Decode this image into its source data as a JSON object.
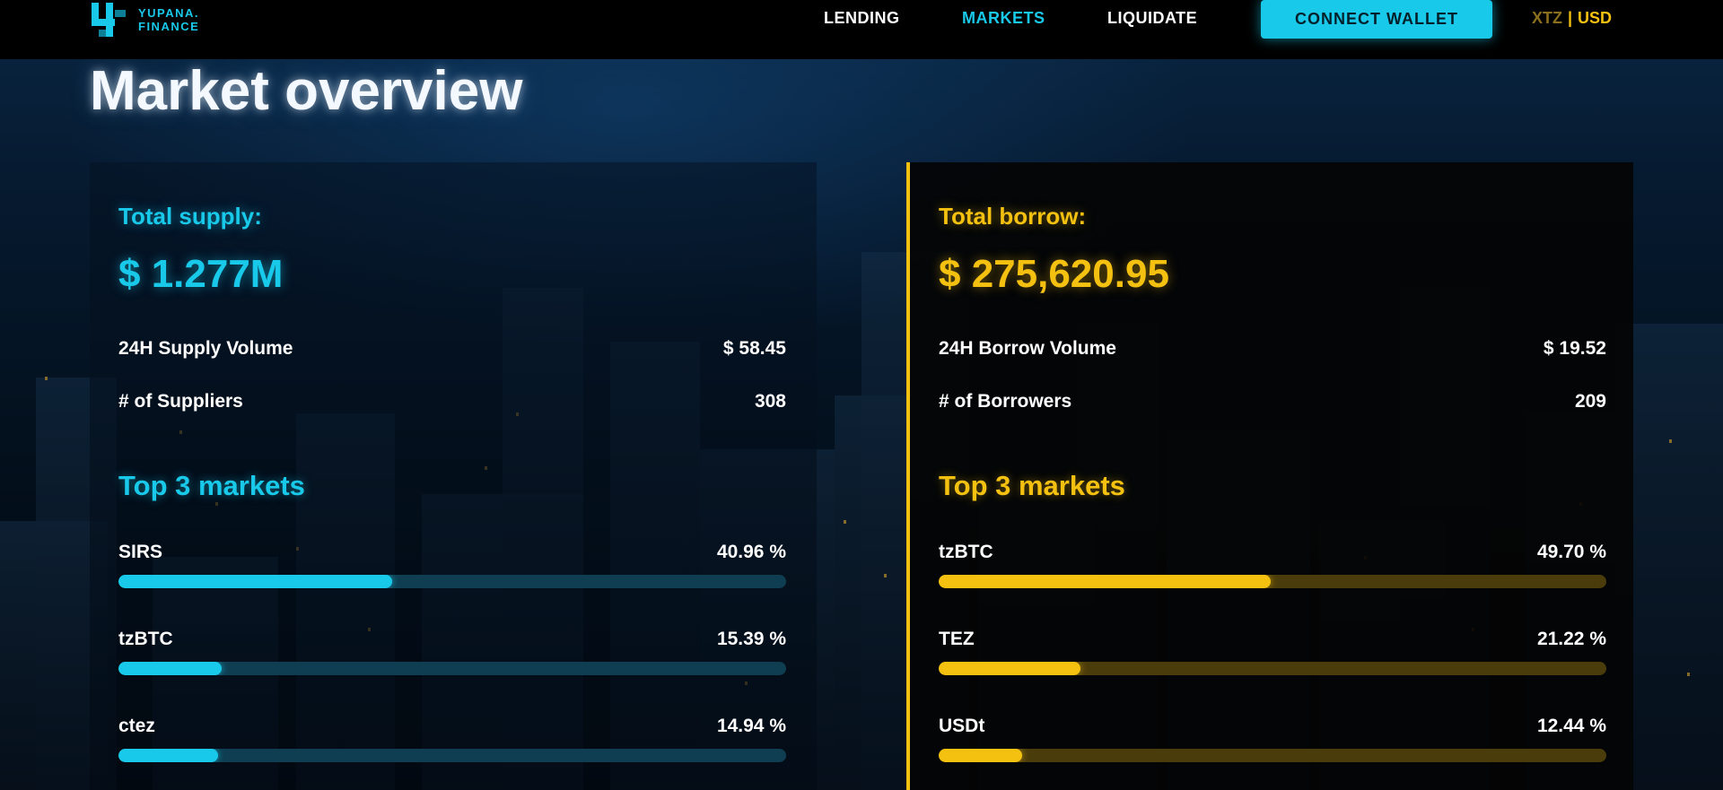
{
  "brand": {
    "name_line1": "YUPANA.",
    "name_line2": "FINANCE",
    "accent": "#19c9ea"
  },
  "nav": [
    {
      "label": "LENDING",
      "active": false
    },
    {
      "label": "MARKETS",
      "active": true
    },
    {
      "label": "LIQUIDATE",
      "active": false
    }
  ],
  "connect_wallet_label": "CONNECT WALLET",
  "currency_toggle": {
    "option_a": "XTZ",
    "separator": "|",
    "option_b": "USD",
    "selected": "USD"
  },
  "page_title": "Market overview",
  "supply": {
    "label": "Total supply:",
    "amount": "$ 1.277M",
    "stats": [
      {
        "name": "24H Supply Volume",
        "value": "$ 58.45"
      },
      {
        "name": "# of Suppliers",
        "value": "308"
      }
    ],
    "top_title": "Top 3 markets",
    "markets": [
      {
        "name": "SIRS",
        "pct_label": "40.96 %",
        "pct": 40.96
      },
      {
        "name": "tzBTC",
        "pct_label": "15.39 %",
        "pct": 15.39
      },
      {
        "name": "ctez",
        "pct_label": "14.94 %",
        "pct": 14.94
      }
    ],
    "color": "#19c9ea"
  },
  "borrow": {
    "label": "Total borrow:",
    "amount": "$ 275,620.95",
    "stats": [
      {
        "name": "24H Borrow Volume",
        "value": "$ 19.52"
      },
      {
        "name": "# of Borrowers",
        "value": "209"
      }
    ],
    "top_title": "Top 3 markets",
    "markets": [
      {
        "name": "tzBTC",
        "pct_label": "49.70 %",
        "pct": 49.7
      },
      {
        "name": "TEZ",
        "pct_label": "21.22 %",
        "pct": 21.22
      },
      {
        "name": "USDt",
        "pct_label": "12.44 %",
        "pct": 12.44
      }
    ],
    "color": "#f5c111"
  }
}
